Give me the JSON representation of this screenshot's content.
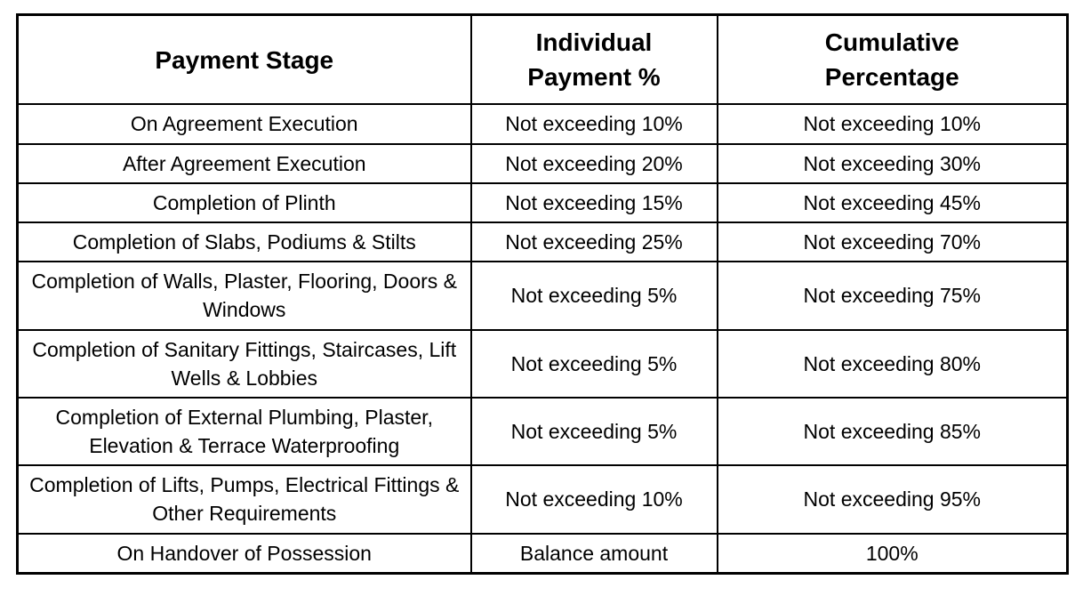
{
  "table": {
    "headers": [
      {
        "lines": [
          "Payment Stage",
          ""
        ]
      },
      {
        "lines": [
          "Individual",
          "Payment %"
        ]
      },
      {
        "lines": [
          "Cumulative",
          "Percentage"
        ]
      }
    ],
    "rows": [
      [
        "On Agreement Execution",
        "Not exceeding 10%",
        "Not exceeding 10%"
      ],
      [
        "After Agreement Execution",
        "Not exceeding 20%",
        "Not exceeding 30%"
      ],
      [
        "Completion of Plinth",
        "Not exceeding 15%",
        "Not exceeding 45%"
      ],
      [
        "Completion of Slabs, Podiums & Stilts",
        "Not exceeding 25%",
        "Not exceeding 70%"
      ],
      [
        "Completion of Walls, Plaster, Flooring, Doors & Windows",
        "Not exceeding 5%",
        "Not exceeding 75%"
      ],
      [
        "Completion of Sanitary Fittings, Staircases, Lift Wells & Lobbies",
        "Not exceeding 5%",
        "Not exceeding 80%"
      ],
      [
        "Completion of External Plumbing, Plaster, Elevation & Terrace Waterproofing",
        "Not exceeding 5%",
        "Not exceeding 85%"
      ],
      [
        "Completion of Lifts, Pumps, Electrical Fittings & Other Requirements",
        "Not exceeding 10%",
        "Not exceeding 95%"
      ],
      [
        "On Handover of Possession",
        "Balance amount",
        "100%"
      ]
    ],
    "colors": {
      "border": "#000000",
      "background": "#ffffff",
      "text": "#000000"
    }
  }
}
